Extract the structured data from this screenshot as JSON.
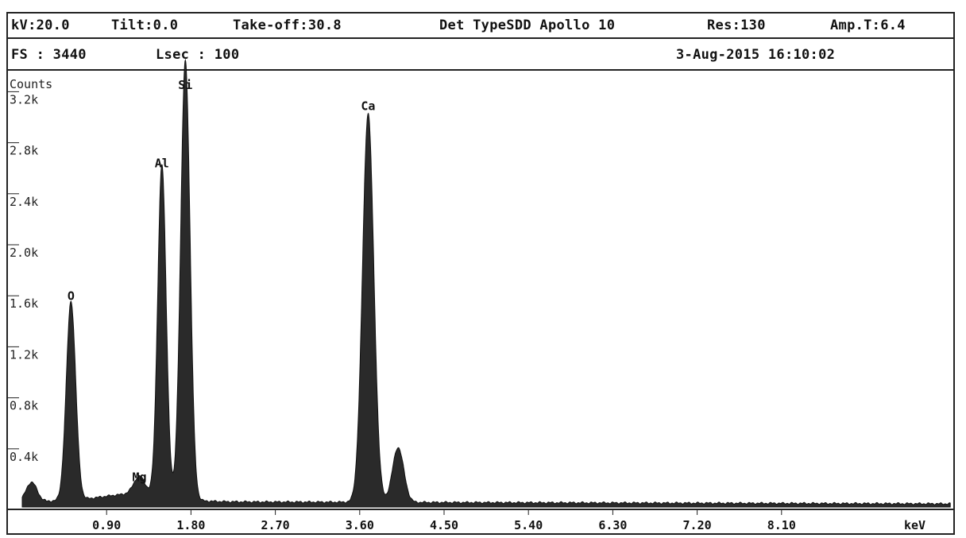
{
  "header": {
    "voltage": "kV:20.0",
    "tilt": "Tilt:0.0",
    "takeoff": "Take-off:30.8",
    "detector": "Det TypeSDD Apollo 10",
    "resolution": "Res:130",
    "amp_time": "Amp.T:6.4",
    "full_scale": "FS : 3440",
    "live_seconds": "Lsec : 100",
    "datetime": "3-Aug-2015 16:10:02"
  },
  "chart_data": {
    "type": "line",
    "title": "",
    "xlabel": "keV",
    "ylabel": "Counts",
    "xlim": [
      0,
      10.2
    ],
    "ylim": [
      0,
      3440
    ],
    "x_ticks": [
      0.9,
      1.8,
      2.7,
      3.6,
      4.5,
      5.4,
      6.3,
      7.2,
      8.1
    ],
    "x_tick_labels": [
      "0.90",
      "1.80",
      "2.70",
      "3.60",
      "4.50",
      "5.40",
      "6.30",
      "7.20",
      "8.10"
    ],
    "y_ticks": [
      400,
      800,
      1200,
      1600,
      2000,
      2400,
      2800,
      3200
    ],
    "y_tick_labels": [
      "0.4k",
      "0.8k",
      "1.2k",
      "1.6k",
      "2.0k",
      "2.4k",
      "2.8k",
      "3.2k"
    ],
    "grid": false,
    "peaks": [
      {
        "element": "O",
        "energy_keV": 0.52,
        "counts": 1560
      },
      {
        "element": "Mg",
        "energy_keV": 1.25,
        "counts": 140
      },
      {
        "element": "Al",
        "energy_keV": 1.49,
        "counts": 2600
      },
      {
        "element": "Si",
        "energy_keV": 1.74,
        "counts": 3440
      },
      {
        "element": "Ca",
        "energy_keV": 3.69,
        "counts": 3050
      },
      {
        "element": "",
        "energy_keV": 4.01,
        "counts": 430
      }
    ]
  }
}
